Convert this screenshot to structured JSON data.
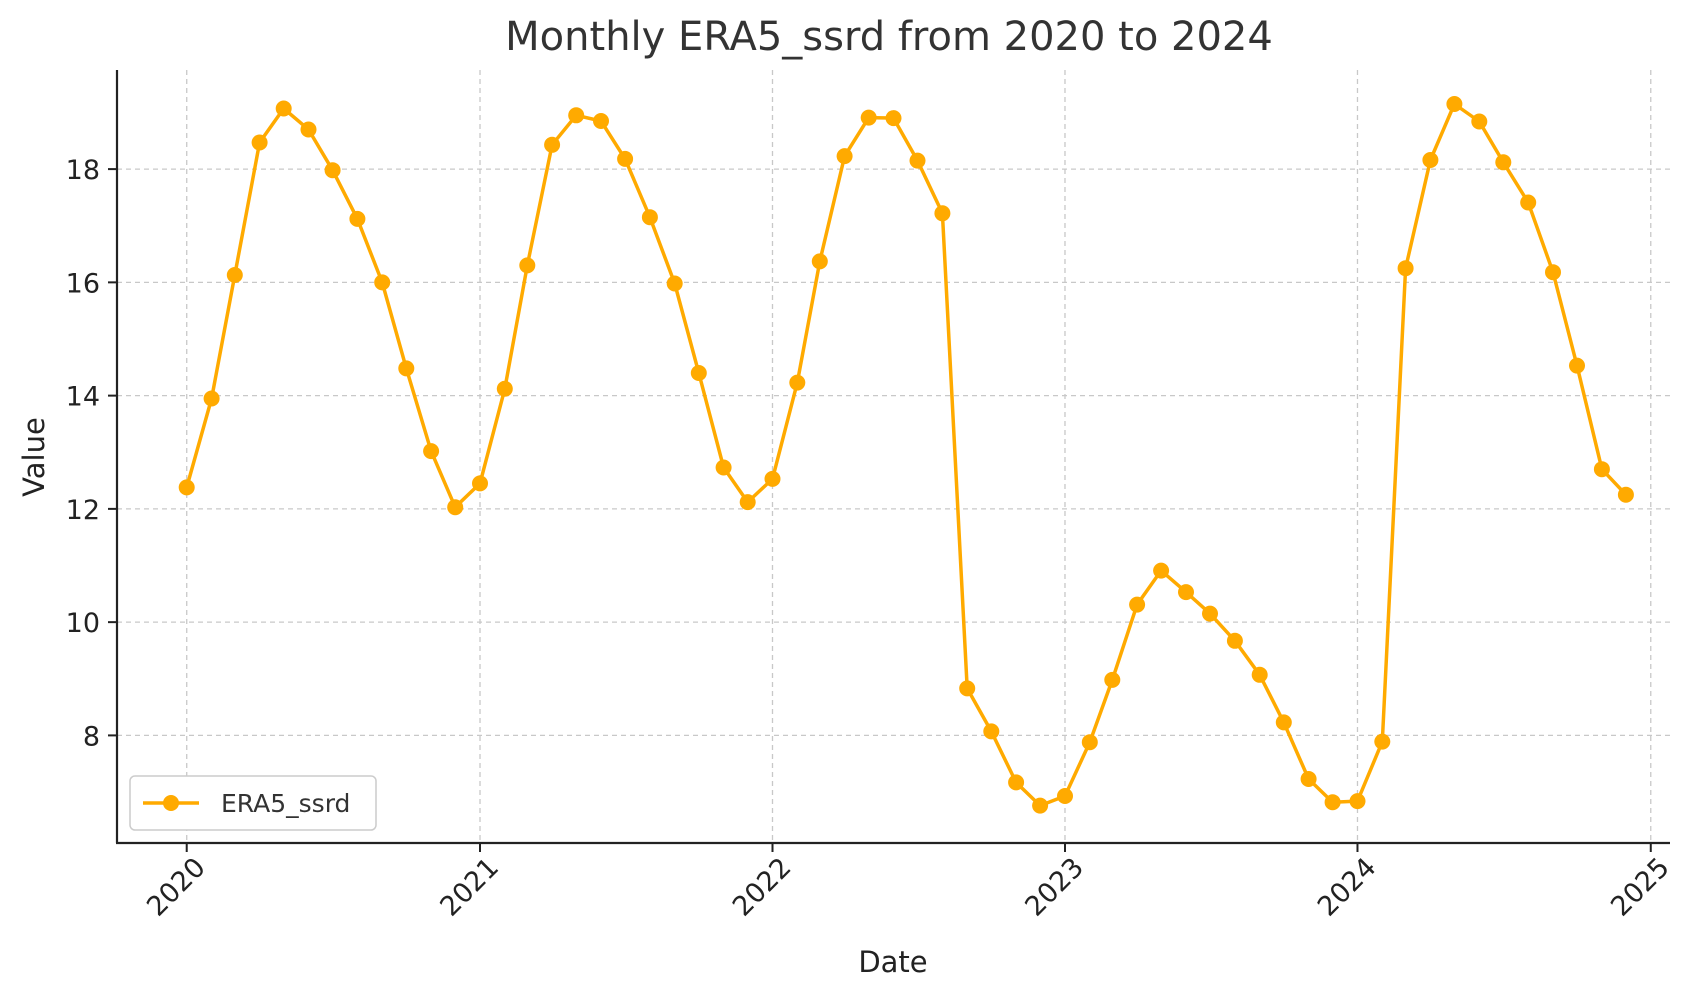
{
  "chart_data": {
    "type": "line",
    "title": "Monthly ERA5_ssrd from 2020 to 2024",
    "xlabel": "Date",
    "ylabel": "Value",
    "x_ticks": [
      "2020",
      "2021",
      "2022",
      "2023",
      "2024",
      "2025"
    ],
    "y_ticks": [
      8,
      10,
      12,
      14,
      16,
      18
    ],
    "xlim": [
      "2019-10-06",
      "2025-01-25"
    ],
    "ylim": [
      6.1,
      19.75
    ],
    "grid": true,
    "legend_position": "lower-left",
    "colors": {
      "series": "#FFAA00",
      "grid": "#c8c8c8",
      "axis": "#222222"
    },
    "series": [
      {
        "name": "ERA5_ssrd",
        "x": [
          "2020-01",
          "2020-02",
          "2020-03",
          "2020-04",
          "2020-05",
          "2020-06",
          "2020-07",
          "2020-08",
          "2020-09",
          "2020-10",
          "2020-11",
          "2020-12",
          "2021-01",
          "2021-02",
          "2021-03",
          "2021-04",
          "2021-05",
          "2021-06",
          "2021-07",
          "2021-08",
          "2021-09",
          "2021-10",
          "2021-11",
          "2021-12",
          "2022-01",
          "2022-02",
          "2022-03",
          "2022-04",
          "2022-05",
          "2022-06",
          "2022-07",
          "2022-08",
          "2022-09",
          "2022-10",
          "2022-11",
          "2022-12",
          "2023-01",
          "2023-02",
          "2023-03",
          "2023-04",
          "2023-05",
          "2023-06",
          "2023-07",
          "2023-08",
          "2023-09",
          "2023-10",
          "2023-11",
          "2023-12",
          "2024-01",
          "2024-02",
          "2024-03",
          "2024-04",
          "2024-05",
          "2024-06",
          "2024-07",
          "2024-08",
          "2024-09",
          "2024-10",
          "2024-11",
          "2024-12"
        ],
        "values": [
          12.38,
          13.95,
          16.13,
          18.47,
          19.07,
          18.7,
          17.98,
          17.12,
          16.0,
          14.48,
          13.02,
          12.03,
          12.45,
          14.12,
          16.3,
          18.43,
          18.95,
          18.85,
          18.18,
          17.15,
          15.98,
          14.4,
          12.73,
          12.12,
          12.53,
          14.23,
          16.37,
          18.23,
          18.91,
          18.9,
          18.15,
          17.22,
          8.83,
          8.07,
          7.17,
          6.76,
          6.93,
          7.88,
          8.98,
          10.31,
          10.91,
          10.53,
          10.15,
          9.67,
          9.07,
          8.23,
          7.23,
          6.82,
          6.84,
          7.89,
          16.25,
          18.16,
          19.15,
          18.84,
          18.12,
          17.41,
          16.18,
          14.53,
          12.7,
          12.25
        ]
      }
    ]
  }
}
